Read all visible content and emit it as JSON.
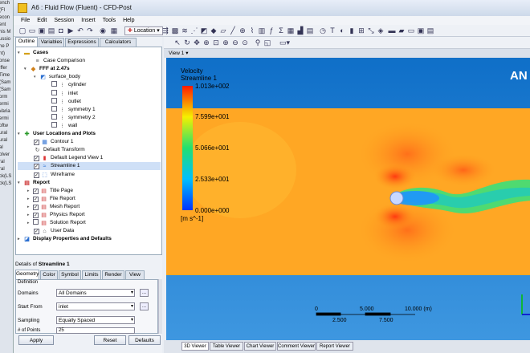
{
  "left_strip_fragments": [
    "ench",
    "(Fl",
    "econ",
    "ent",
    "his M",
    "ussio",
    "he P",
    "nt)",
    "onse",
    "iffer",
    "Time",
    "(Sam",
    "(Sam",
    "orm",
    "ermi",
    "Varia",
    "ermi",
    "oftw",
    "ural",
    "ural",
    "al",
    "olver",
    "ral",
    "ral",
    "ck(LS",
    "ck(LS"
  ],
  "window": {
    "title": "A6 : Fluid Flow (Fluent) - CFD-Post"
  },
  "menu": [
    "File",
    "Edit",
    "Session",
    "Insert",
    "Tools",
    "Help"
  ],
  "toolbar": {
    "location_label": "Location"
  },
  "panel": {
    "tabs": [
      "Outline",
      "Variables",
      "Expressions",
      "Calculators"
    ],
    "tree": [
      {
        "label": "Cases",
        "bold": true,
        "x": 4,
        "exp": "▾",
        "icon": "folder-icon",
        "glyph": "▬",
        "color": "#d4a017"
      },
      {
        "label": "Case Comparison",
        "bold": false,
        "x": 20,
        "icon": "compare-icon",
        "glyph": "≡",
        "color": "#555"
      },
      {
        "label": "FFF at 2.47s",
        "bold": true,
        "x": 16,
        "exp": "▾",
        "icon": "case-icon",
        "glyph": "◆",
        "color": "#d0801a"
      },
      {
        "label": "surface_body",
        "bold": false,
        "x": 28,
        "exp": "▾",
        "icon": "body-icon",
        "glyph": "◩",
        "color": "#2a6ed1"
      },
      {
        "label": "cylinder",
        "bold": false,
        "x": 52,
        "chk": "",
        "icon": "boundary-icon",
        "glyph": "⁝",
        "color": "#444"
      },
      {
        "label": "inlet",
        "bold": false,
        "x": 52,
        "chk": "",
        "icon": "boundary-icon",
        "glyph": "⁝",
        "color": "#444"
      },
      {
        "label": "outlet",
        "bold": false,
        "x": 52,
        "chk": "",
        "icon": "boundary-icon",
        "glyph": "⁝",
        "color": "#444"
      },
      {
        "label": "symmetry 1",
        "bold": false,
        "x": 52,
        "chk": "",
        "icon": "boundary-icon",
        "glyph": "⁝",
        "color": "#444"
      },
      {
        "label": "symmetry 2",
        "bold": false,
        "x": 52,
        "chk": "",
        "icon": "boundary-icon",
        "glyph": "⁝",
        "color": "#444"
      },
      {
        "label": "wall",
        "bold": false,
        "x": 52,
        "chk": "",
        "icon": "boundary-icon",
        "glyph": "⁝",
        "color": "#444"
      },
      {
        "label": "User Locations and Plots",
        "bold": true,
        "x": 4,
        "exp": "▾",
        "icon": "plots-folder-icon",
        "glyph": "✚",
        "color": "#2a9a2a"
      },
      {
        "label": "Contour 1",
        "bold": false,
        "x": 30,
        "chk": "✓",
        "icon": "contour-icon",
        "glyph": "▦",
        "color": "#2a6ed1"
      },
      {
        "label": "Default Transform",
        "bold": false,
        "x": 20,
        "icon": "transform-icon",
        "glyph": "↻",
        "color": "#555"
      },
      {
        "label": "Default Legend View 1",
        "bold": false,
        "x": 30,
        "chk": "✓",
        "icon": "legend-icon",
        "glyph": "▮",
        "color": "#d33"
      },
      {
        "label": "Streamline 1",
        "bold": false,
        "x": 30,
        "chk": "✓",
        "icon": "streamline-icon",
        "glyph": "≈",
        "color": "#2a6ed1",
        "selected": true
      },
      {
        "label": "Wireframe",
        "bold": false,
        "x": 30,
        "chk": "✓",
        "icon": "wireframe-icon",
        "glyph": "⬚",
        "color": "#2a6ed1"
      },
      {
        "label": "Report",
        "bold": true,
        "x": 4,
        "exp": "▾",
        "icon": "report-icon",
        "glyph": "▤",
        "color": "#c33"
      },
      {
        "label": "Title Page",
        "bold": false,
        "x": 30,
        "exp": "▸",
        "chk": "✓",
        "icon": "page-icon",
        "glyph": "▤",
        "color": "#c33"
      },
      {
        "label": "File Report",
        "bold": false,
        "x": 30,
        "exp": "▸",
        "chk": "✓",
        "icon": "page-icon",
        "glyph": "▤",
        "color": "#c33"
      },
      {
        "label": "Mesh Report",
        "bold": false,
        "x": 30,
        "exp": "▸",
        "chk": "✓",
        "icon": "page-icon",
        "glyph": "▤",
        "color": "#c33"
      },
      {
        "label": "Physics Report",
        "bold": false,
        "x": 30,
        "exp": "▸",
        "chk": "✓",
        "icon": "page-icon",
        "glyph": "▤",
        "color": "#c33"
      },
      {
        "label": "Solution Report",
        "bold": false,
        "x": 30,
        "exp": "▸",
        "chk": "",
        "icon": "page-icon",
        "glyph": "▤",
        "color": "#c33"
      },
      {
        "label": "User Data",
        "bold": false,
        "x": 30,
        "chk": "✓",
        "icon": "data-icon",
        "glyph": "⌂",
        "color": "#555"
      },
      {
        "label": "Display Properties and Defaults",
        "bold": true,
        "x": 4,
        "exp": "▸",
        "icon": "display-icon",
        "glyph": "◪",
        "color": "#2a6ed1"
      }
    ],
    "details_title_prefix": "Details of ",
    "details_object": "Streamline 1",
    "details_tabs": [
      "Geometry",
      "Color",
      "Symbol",
      "Limits",
      "Render",
      "View"
    ],
    "details_tab_subtitle": "Definition",
    "fields": {
      "domains_label": "Domains",
      "domains_value": "All Domains",
      "start_from_label": "Start From",
      "start_from_value": "inlet",
      "sampling_label": "Sampling",
      "sampling_value": "Equally Spaced",
      "points_label": "# of Points",
      "points_value": "25"
    },
    "buttons": {
      "apply": "Apply",
      "reset": "Reset",
      "defaults": "Defaults"
    },
    "mini_button": "..."
  },
  "view": {
    "label": "View 1",
    "brand_text": "AN",
    "legend": {
      "title": "Velocity",
      "subtitle": "Streamline 1",
      "ticks": [
        "1.013e+002",
        "7.599e+001",
        "5.066e+001",
        "2.533e+001",
        "0.000e+000"
      ],
      "units": "[m s^-1]"
    },
    "scale_top": [
      "0",
      "5.000",
      "10.000  (m)"
    ],
    "scale_bottom": [
      "2.500",
      "7.500"
    ]
  },
  "bottom_tabs": [
    "3D Viewer",
    "Table Viewer",
    "Chart Viewer",
    "Comment Viewer",
    "Report Viewer"
  ]
}
